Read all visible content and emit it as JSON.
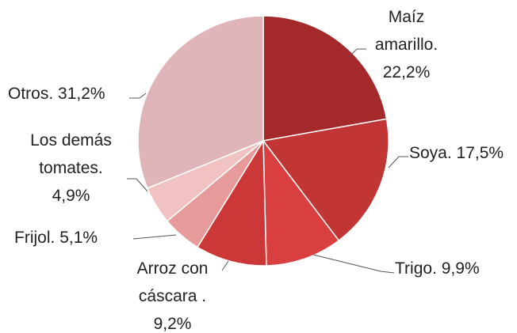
{
  "chart_data": {
    "type": "pie",
    "categories": [
      "Maíz amarillo.",
      "Soya.",
      "Trigo.",
      "Arroz con cáscara .",
      "Frijol.",
      "Los demás tomates.",
      "Otros."
    ],
    "values": [
      22.2,
      17.5,
      9.9,
      9.2,
      5.1,
      4.9,
      31.2
    ],
    "value_labels": [
      "22,2%",
      "17,5%",
      "9,9%",
      "9,2%",
      "5,1%",
      "4,9%",
      "31,2%"
    ],
    "colors": [
      "#a3292b",
      "#c23535",
      "#d93f3f",
      "#cc3838",
      "#e69a9a",
      "#f0c2c2",
      "#dfb5b9"
    ]
  }
}
